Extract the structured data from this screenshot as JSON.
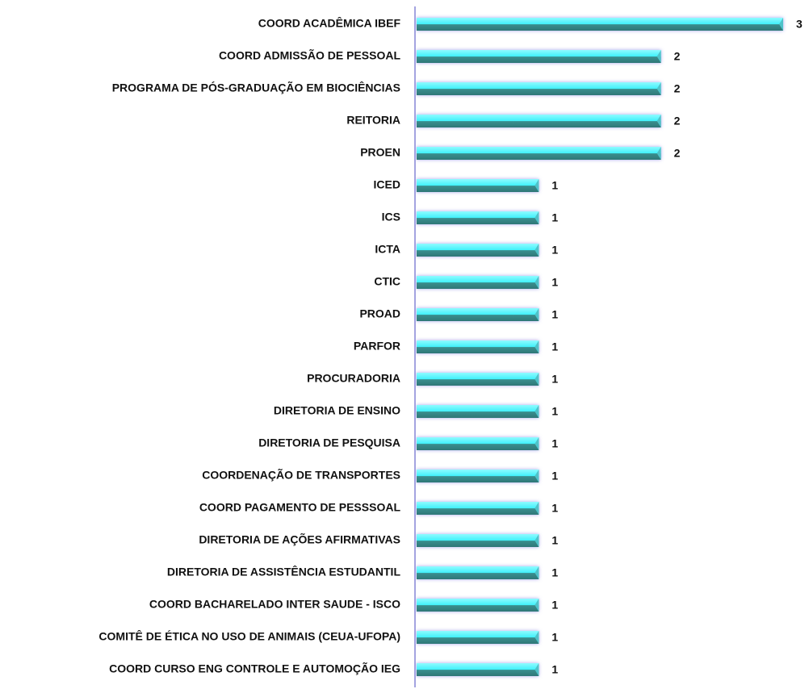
{
  "chart_data": {
    "type": "hbar",
    "categories": [
      "COORD ACADÊMICA IBEF",
      "COORD ADMISSÃO DE PESSOAL",
      "PROGRAMA DE PÓS-GRADUAÇÃO EM BIOCIÊNCIAS",
      "REITORIA",
      "PROEN",
      "ICED",
      "ICS",
      "ICTA",
      "CTIC",
      "PROAD",
      "PARFOR",
      "PROCURADORIA",
      "DIRETORIA DE ENSINO",
      "DIRETORIA DE PESQUISA",
      "COORDENAÇÃO DE TRANSPORTES",
      "COORD PAGAMENTO DE PESSSOAL",
      "DIRETORIA DE AÇÕES AFIRMATIVAS",
      "DIRETORIA DE ASSISTÊNCIA ESTUDANTIL",
      "COORD BACHARELADO INTER SAUDE -  ISCO",
      "COMITÊ DE ÉTICA NO USO DE ANIMAIS (CEUA-UFOPA)",
      "COORD CURSO ENG CONTROLE E AUTOMOÇÃO IEG"
    ],
    "values": [
      3,
      2,
      2,
      2,
      2,
      1,
      1,
      1,
      1,
      1,
      1,
      1,
      1,
      1,
      1,
      1,
      1,
      1,
      1,
      1,
      1
    ],
    "color": "#5ff4ff",
    "xlim": [
      0,
      3
    ]
  }
}
